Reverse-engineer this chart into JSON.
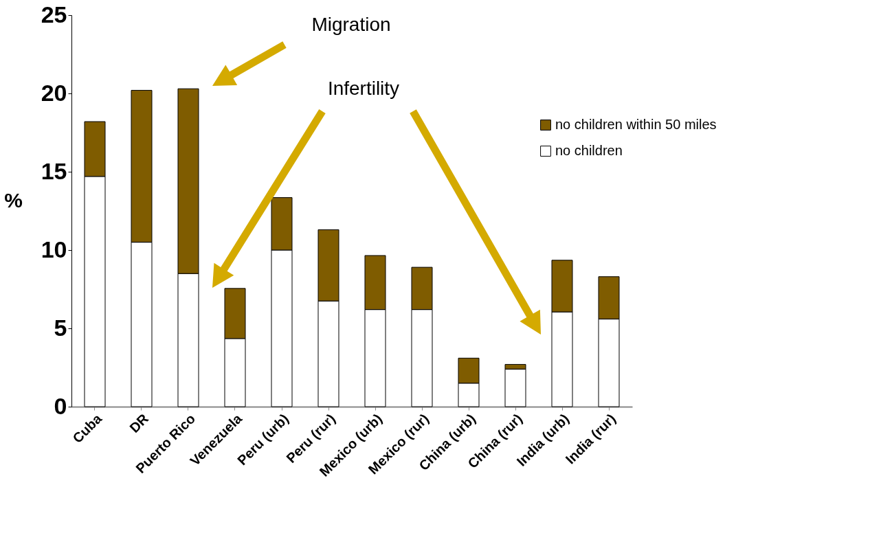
{
  "chart_data": {
    "type": "bar",
    "stacked": true,
    "ylabel": "%",
    "categories": [
      "Cuba",
      "DR",
      "Puerto Rico",
      "Venezuela",
      "Peru (urb)",
      "Peru (rur)",
      "Mexico (urb)",
      "Mexico (rur)",
      "China (urb)",
      "China (rur)",
      "India (urb)",
      "India (rur)"
    ],
    "series": [
      {
        "name": "no children",
        "color": "#ffffff",
        "values": [
          14.7,
          10.5,
          8.5,
          4.35,
          10.0,
          6.75,
          6.2,
          6.2,
          1.5,
          2.4,
          6.05,
          5.6
        ]
      },
      {
        "name": "no children within 50 miles",
        "color": "#7f5c00",
        "values": [
          3.5,
          9.7,
          11.8,
          3.2,
          3.35,
          4.55,
          3.45,
          2.7,
          1.6,
          0.3,
          3.3,
          2.7
        ]
      }
    ],
    "ylim": [
      0,
      25
    ],
    "yticks": [
      0,
      5,
      10,
      15,
      20,
      25
    ],
    "grid": false,
    "legend": "right",
    "annotations": [
      "Migration",
      "Infertility"
    ]
  }
}
